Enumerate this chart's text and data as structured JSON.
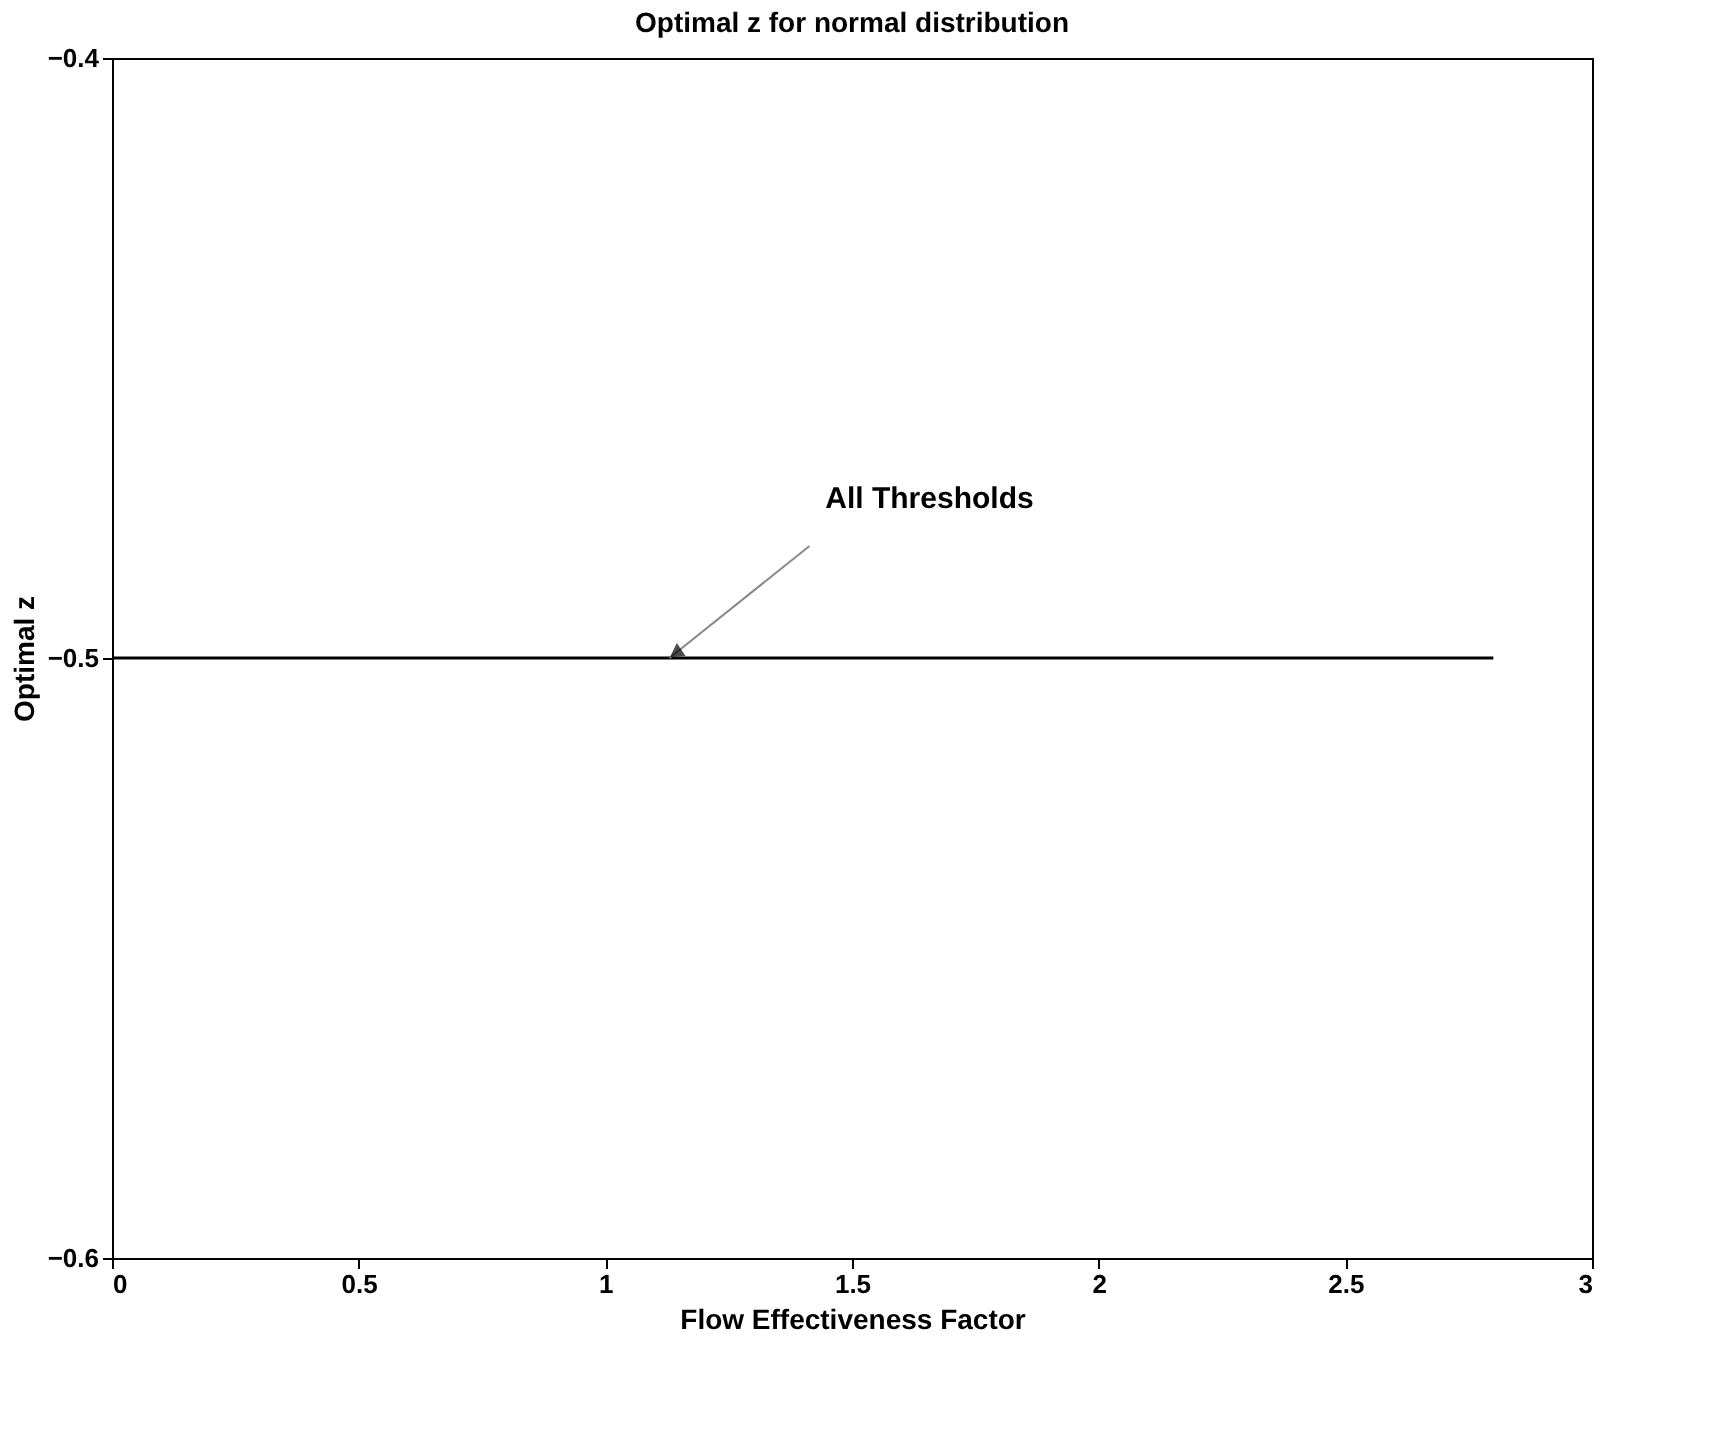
{
  "chart_data": {
    "type": "line",
    "title": "Optimal z for normal distribution",
    "xlabel": "Flow Effectiveness Factor",
    "ylabel": "Optimal z",
    "x": [
      0,
      2.8
    ],
    "series": [
      {
        "color": "#000000",
        "values": [
          -0.5,
          -0.5
        ]
      }
    ],
    "xlim": [
      0,
      3
    ],
    "xticks": [
      0,
      0.5,
      1,
      1.5,
      2,
      2.5,
      3
    ],
    "ylim": [
      -0.6,
      -0.4
    ],
    "yticks": [
      -0.6,
      -0.5,
      -0.4
    ],
    "grid": false,
    "marker": "none",
    "line_style": "solid",
    "annotations": [
      {
        "text": "All Thresholds",
        "x": 1.13,
        "y": -0.5
      }
    ]
  }
}
